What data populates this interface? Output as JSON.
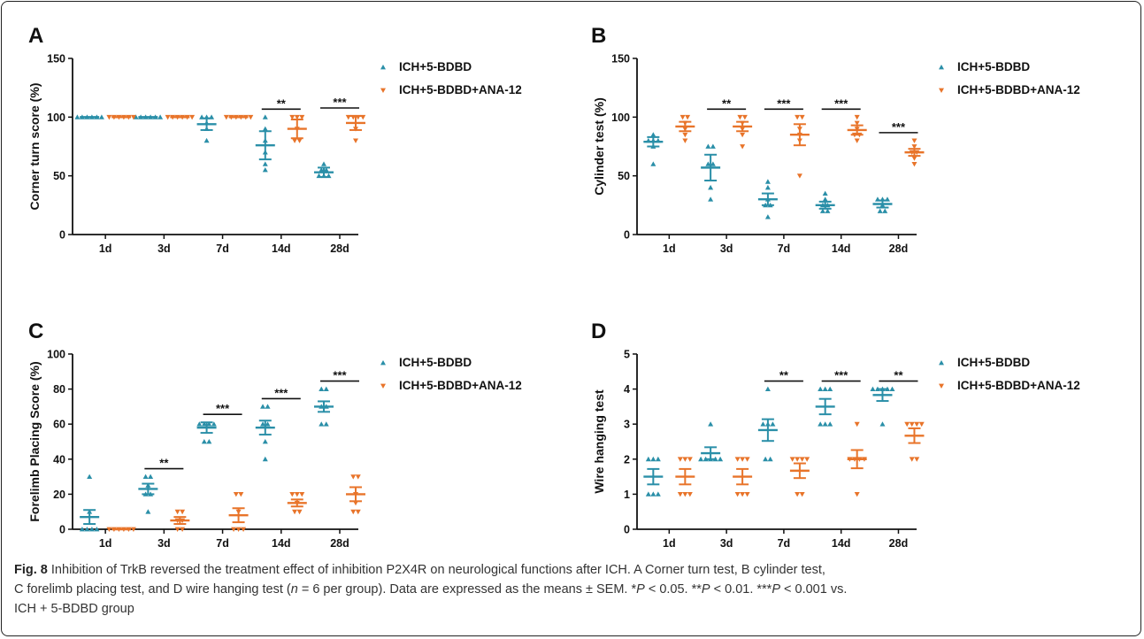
{
  "colors": {
    "series1": "#2a8fa8",
    "series2": "#e8742a",
    "axis": "#111111",
    "text": "#111111"
  },
  "caption": {
    "fig_label": "Fig. 8",
    "line1": "Inhibition of TrkB reversed the treatment effect of inhibition P2X4R on neurological functions after ICH. A Corner turn test, B cylinder test,",
    "line2a": "C forelimb placing test, and D wire hanging test (",
    "n_italic": "n",
    "line2b": " = 6 per group). Data are expressed as the means ± SEM. *",
    "p1": "P",
    "line2c": " < 0.05. **",
    "p2": "P",
    "line2d": " < 0.01. ***",
    "p3": "P",
    "line2e": " < 0.001 vs.",
    "line3": "ICH + 5-BDBD group"
  },
  "chart_data": [
    {
      "panel": "A",
      "type": "scatter",
      "ylabel": "Corner turn score (%)",
      "categories": [
        "1d",
        "3d",
        "7d",
        "14d",
        "28d"
      ],
      "ylim": [
        0,
        150
      ],
      "yticks": [
        0,
        50,
        100,
        150
      ],
      "series": [
        {
          "name": "ICH+5-BDBD",
          "marker": "triangle-up",
          "means": [
            100,
            100,
            94,
            76,
            53
          ],
          "sem": [
            0,
            0,
            5,
            12,
            4
          ],
          "points": [
            [
              100,
              100,
              100,
              100,
              100,
              100
            ],
            [
              100,
              100,
              100,
              100,
              100,
              100
            ],
            [
              80,
              90,
              100,
              100,
              100,
              95
            ],
            [
              55,
              60,
              70,
              80,
              90,
              100
            ],
            [
              50,
              50,
              50,
              55,
              55,
              60
            ]
          ]
        },
        {
          "name": "ICH+5-BDBD+ANA-12",
          "marker": "triangle-down",
          "means": [
            100,
            100,
            100,
            90,
            95
          ],
          "sem": [
            0,
            0,
            0,
            8,
            6
          ],
          "points": [
            [
              100,
              100,
              100,
              100,
              100,
              100
            ],
            [
              100,
              100,
              100,
              100,
              100,
              100
            ],
            [
              100,
              100,
              100,
              100,
              100,
              100
            ],
            [
              80,
              80,
              90,
              100,
              100,
              100
            ],
            [
              80,
              90,
              100,
              100,
              100,
              100
            ]
          ]
        }
      ],
      "significance": [
        {
          "category": "14d",
          "label": "**"
        },
        {
          "category": "28d",
          "label": "***"
        }
      ]
    },
    {
      "panel": "B",
      "type": "scatter",
      "ylabel": "Cylinder test (%)",
      "categories": [
        "1d",
        "3d",
        "7d",
        "14d",
        "28d"
      ],
      "ylim": [
        0,
        150
      ],
      "yticks": [
        0,
        50,
        100,
        150
      ],
      "series": [
        {
          "name": "ICH+5-BDBD",
          "marker": "triangle-up",
          "means": [
            79,
            57,
            30,
            25,
            26
          ],
          "sem": [
            4,
            11,
            5,
            3,
            3
          ],
          "points": [
            [
              60,
              75,
              80,
              80,
              80,
              85
            ],
            [
              30,
              40,
              60,
              60,
              75,
              75
            ],
            [
              15,
              25,
              25,
              30,
              40,
              45
            ],
            [
              20,
              20,
              25,
              25,
              30,
              35
            ],
            [
              20,
              20,
              25,
              30,
              30,
              30
            ]
          ]
        },
        {
          "name": "ICH+5-BDBD+ANA-12",
          "marker": "triangle-down",
          "means": [
            92,
            92,
            85,
            89,
            70
          ],
          "sem": [
            4,
            4,
            9,
            4,
            3
          ],
          "points": [
            [
              80,
              85,
              90,
              95,
              100,
              100
            ],
            [
              75,
              85,
              90,
              95,
              100,
              100
            ],
            [
              50,
              80,
              85,
              90,
              100,
              100
            ],
            [
              80,
              85,
              85,
              90,
              95,
              100
            ],
            [
              60,
              65,
              70,
              70,
              75,
              80
            ]
          ]
        }
      ],
      "significance": [
        {
          "category": "3d",
          "label": "**"
        },
        {
          "category": "7d",
          "label": "***"
        },
        {
          "category": "14d",
          "label": "***"
        },
        {
          "category": "28d",
          "label": "***"
        }
      ]
    },
    {
      "panel": "C",
      "type": "scatter",
      "ylabel": "Forelimb Placing Score (%)",
      "categories": [
        "1d",
        "3d",
        "7d",
        "14d",
        "28d"
      ],
      "ylim": [
        0,
        100
      ],
      "yticks": [
        0,
        20,
        40,
        60,
        80,
        100
      ],
      "series": [
        {
          "name": "ICH+5-BDBD",
          "marker": "triangle-up",
          "means": [
            7,
            23,
            58,
            58,
            70
          ],
          "sem": [
            4,
            3,
            3,
            4,
            3
          ],
          "points": [
            [
              0,
              0,
              0,
              0,
              10,
              30
            ],
            [
              10,
              20,
              20,
              25,
              30,
              30
            ],
            [
              50,
              50,
              60,
              60,
              60,
              60
            ],
            [
              40,
              50,
              60,
              60,
              70,
              70
            ],
            [
              60,
              60,
              70,
              70,
              80,
              80
            ]
          ]
        },
        {
          "name": "ICH+5-BDBD+ANA-12",
          "marker": "triangle-down",
          "means": [
            0,
            5,
            8,
            15,
            20
          ],
          "sem": [
            0,
            2,
            4,
            2,
            4
          ],
          "points": [
            [
              0,
              0,
              0,
              0,
              0,
              0
            ],
            [
              0,
              0,
              5,
              5,
              10,
              10
            ],
            [
              0,
              0,
              0,
              10,
              20,
              20
            ],
            [
              10,
              10,
              15,
              20,
              20,
              20
            ],
            [
              10,
              10,
              15,
              20,
              30,
              30
            ]
          ]
        }
      ],
      "significance": [
        {
          "category": "3d",
          "label": "**"
        },
        {
          "category": "7d",
          "label": "***"
        },
        {
          "category": "14d",
          "label": "***"
        },
        {
          "category": "28d",
          "label": "***"
        }
      ]
    },
    {
      "panel": "D",
      "type": "scatter",
      "ylabel": "Wire hanging test",
      "categories": [
        "1d",
        "3d",
        "7d",
        "14d",
        "28d"
      ],
      "ylim": [
        0,
        5
      ],
      "yticks": [
        0,
        1,
        2,
        3,
        4,
        5
      ],
      "series": [
        {
          "name": "ICH+5-BDBD",
          "marker": "triangle-up",
          "means": [
            1.5,
            2.17,
            2.83,
            3.5,
            3.83
          ],
          "sem": [
            0.22,
            0.17,
            0.31,
            0.22,
            0.17
          ],
          "points": [
            [
              1,
              1,
              1,
              2,
              2,
              2
            ],
            [
              2,
              2,
              2,
              2,
              2,
              3
            ],
            [
              2,
              2,
              3,
              3,
              4,
              3
            ],
            [
              3,
              3,
              3,
              4,
              4,
              4
            ],
            [
              3,
              4,
              4,
              4,
              4,
              4
            ]
          ]
        },
        {
          "name": "ICH+5-BDBD+ANA-12",
          "marker": "triangle-down",
          "means": [
            1.5,
            1.5,
            1.67,
            2.0,
            2.67
          ],
          "sem": [
            0.22,
            0.22,
            0.21,
            0.26,
            0.21
          ],
          "points": [
            [
              1,
              1,
              1,
              2,
              2,
              2
            ],
            [
              1,
              1,
              1,
              2,
              2,
              2
            ],
            [
              1,
              1,
              2,
              2,
              2,
              2
            ],
            [
              1,
              2,
              2,
              2,
              2,
              3
            ],
            [
              2,
              2,
              3,
              3,
              3,
              3
            ]
          ]
        }
      ],
      "significance": [
        {
          "category": "7d",
          "label": "**"
        },
        {
          "category": "14d",
          "label": "***"
        },
        {
          "category": "28d",
          "label": "**"
        }
      ]
    }
  ]
}
